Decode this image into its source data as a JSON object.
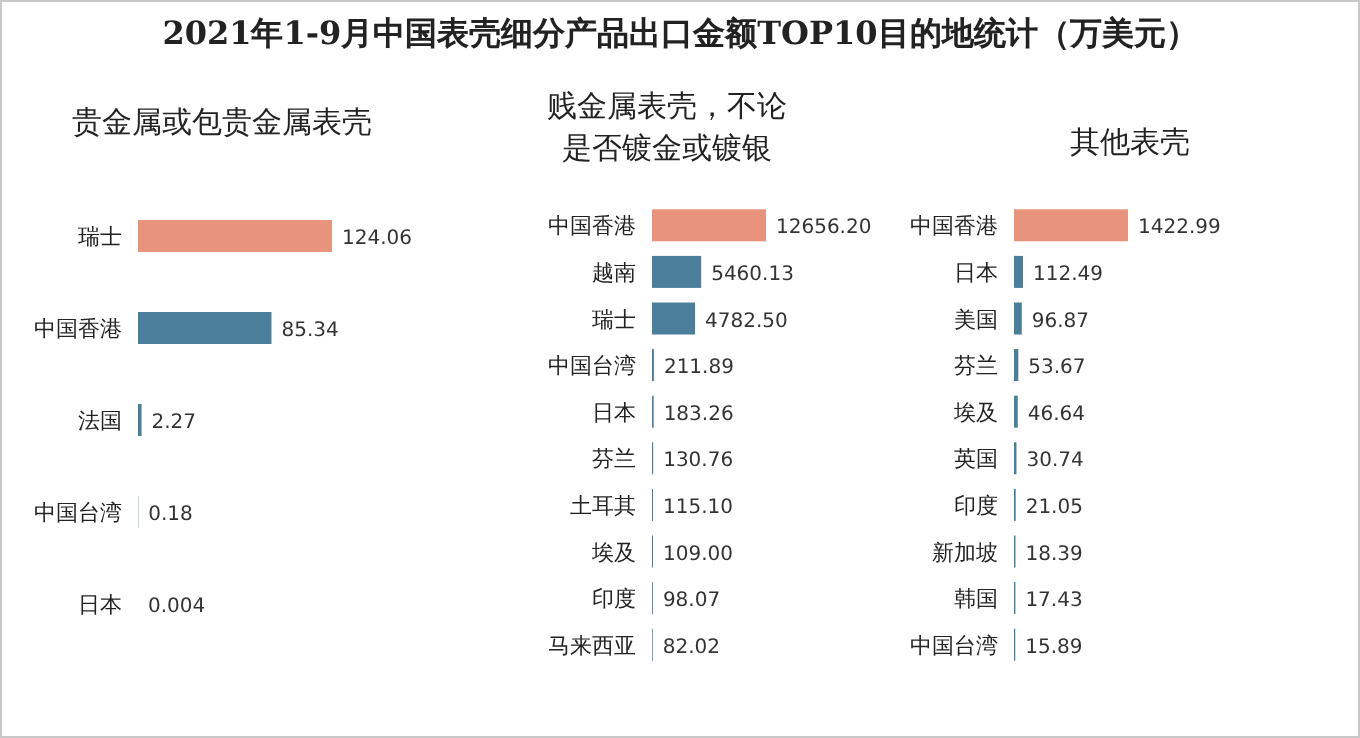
{
  "chart_data": [
    {
      "type": "bar",
      "orientation": "horizontal",
      "title": "2021年1-9月中国表壳细分产品出口金额TOP10目的地统计（万美元）",
      "subtitle": "贵金属或包贵金属表壳",
      "categories": [
        "瑞士",
        "中国香港",
        "法国",
        "中国台湾",
        "日本"
      ],
      "values": [
        124.06,
        85.34,
        2.27,
        0.18,
        0.004
      ],
      "value_labels": [
        "124.06",
        "85.34",
        "2.27",
        "0.18",
        "0.004"
      ],
      "colors": [
        "#e8937c",
        "#4a7e9a",
        "#4a7e9a",
        "#4a7e9a",
        "#4a7e9a"
      ]
    },
    {
      "type": "bar",
      "orientation": "horizontal",
      "subtitle": "贱金属表壳，不论是否镀金或镀银",
      "categories": [
        "中国香港",
        "越南",
        "瑞士",
        "中国台湾",
        "日本",
        "芬兰",
        "土耳其",
        "埃及",
        "印度",
        "马来西亚"
      ],
      "values": [
        12656.2,
        5460.13,
        4782.5,
        211.89,
        183.26,
        130.76,
        115.1,
        109.0,
        98.07,
        82.02
      ],
      "value_labels": [
        "12656.20",
        "5460.13",
        "4782.50",
        "211.89",
        "183.26",
        "130.76",
        "115.10",
        "109.00",
        "98.07",
        "82.02"
      ],
      "colors": [
        "#e8937c",
        "#4a7e9a",
        "#4a7e9a",
        "#4a7e9a",
        "#4a7e9a",
        "#4a7e9a",
        "#4a7e9a",
        "#4a7e9a",
        "#4a7e9a",
        "#4a7e9a"
      ]
    },
    {
      "type": "bar",
      "orientation": "horizontal",
      "subtitle": "其他表壳",
      "categories": [
        "中国香港",
        "日本",
        "美国",
        "芬兰",
        "埃及",
        "英国",
        "印度",
        "新加坡",
        "韩国",
        "中国台湾"
      ],
      "values": [
        1422.99,
        112.49,
        96.87,
        53.67,
        46.64,
        30.74,
        21.05,
        18.39,
        17.43,
        15.89
      ],
      "value_labels": [
        "1422.99",
        "112.49",
        "96.87",
        "53.67",
        "46.64",
        "30.74",
        "21.05",
        "18.39",
        "17.43",
        "15.89"
      ],
      "colors": [
        "#e8937c",
        "#4a7e9a",
        "#4a7e9a",
        "#4a7e9a",
        "#4a7e9a",
        "#4a7e9a",
        "#4a7e9a",
        "#4a7e9a",
        "#4a7e9a",
        "#4a7e9a"
      ]
    }
  ]
}
